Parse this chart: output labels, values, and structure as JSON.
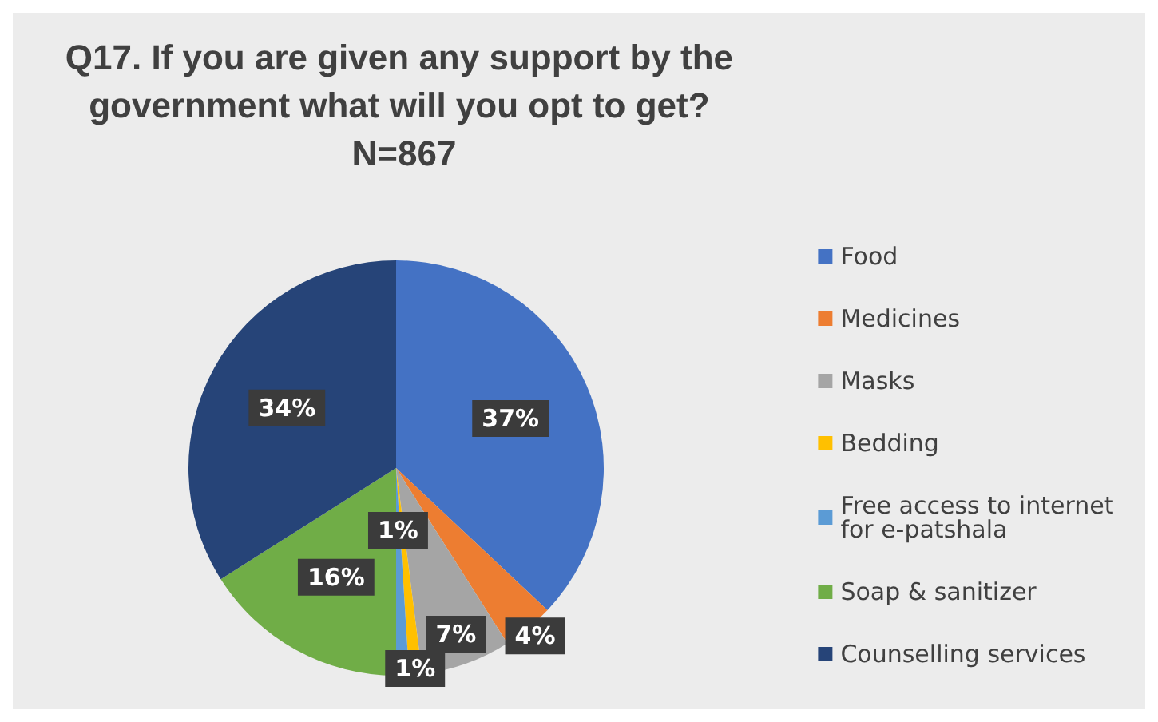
{
  "chart_data": {
    "type": "pie",
    "title": "Q17. If you are given any support by the government what will you opt to get? N=867",
    "categories": [
      "Food",
      "Medicines",
      "Masks",
      "Bedding",
      "Free access to internet for e-patshala",
      "Soap & sanitizer",
      "Counselling services"
    ],
    "values": [
      37,
      4,
      7,
      1,
      1,
      16,
      34
    ],
    "colors": [
      "#4472c4",
      "#ed7d31",
      "#a5a5a5",
      "#ffc000",
      "#5b9bd5",
      "#70ad47",
      "#264478"
    ],
    "value_labels": [
      "37%",
      "4%",
      "7%",
      "1%",
      "1%",
      "16%",
      "34%"
    ],
    "legend": "right"
  }
}
